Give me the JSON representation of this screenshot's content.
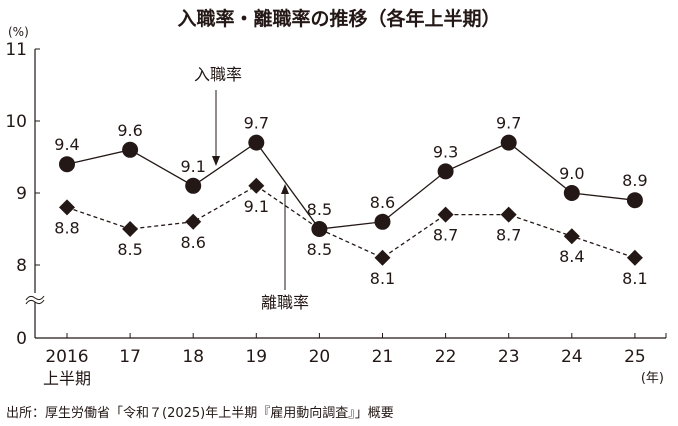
{
  "chart_data": {
    "type": "line",
    "title": "入職率・離職率の推移（各年上半期）",
    "ylabel": "(%)",
    "xlabel": "(年)",
    "ylim": [
      0,
      11
    ],
    "axis_break": [
      0,
      8
    ],
    "y_ticks": [
      "0",
      "8",
      "9",
      "10",
      "11"
    ],
    "categories": [
      "2016",
      "17",
      "18",
      "19",
      "20",
      "21",
      "22",
      "23",
      "24",
      "25"
    ],
    "first_category_sublabel": "上半期",
    "grid": false,
    "series": [
      {
        "name": "入職率",
        "marker": "circle",
        "line": "solid",
        "values": [
          9.4,
          9.6,
          9.1,
          9.7,
          8.5,
          8.6,
          9.3,
          9.7,
          9.0,
          8.9
        ],
        "labels": [
          "9.4",
          "9.6",
          "9.1",
          "9.7",
          "8.5",
          "8.6",
          "9.3",
          "9.7",
          "9.0",
          "8.9"
        ]
      },
      {
        "name": "離職率",
        "marker": "diamond",
        "line": "dashed",
        "values": [
          8.8,
          8.5,
          8.6,
          9.1,
          8.5,
          8.1,
          8.7,
          8.7,
          8.4,
          8.1
        ],
        "labels": [
          "8.8",
          "8.5",
          "8.6",
          "9.1",
          "8.5",
          "8.1",
          "8.7",
          "8.7",
          "8.4",
          "8.1"
        ]
      }
    ],
    "annotations": [
      "入職率",
      "離職率"
    ],
    "source": "出所：厚生労働省「令和７(2025)年上半期『雇用動向調査』」概要"
  }
}
